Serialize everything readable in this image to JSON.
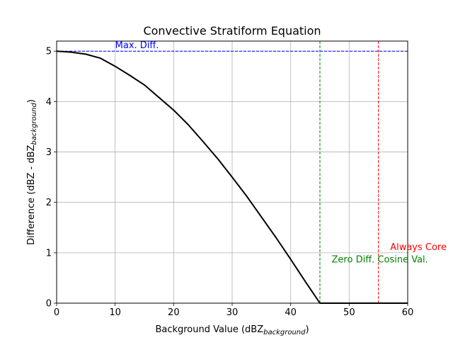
{
  "chart_data": {
    "type": "line",
    "title": "Convective Stratiform Equation",
    "xlabel": {
      "main": "Background Value (dBZ",
      "sub": "background",
      "close": ")"
    },
    "ylabel": {
      "main": "Difference (dBZ - dBZ",
      "sub": "background",
      "close": ")"
    },
    "xlim": [
      0,
      60
    ],
    "ylim": [
      0,
      5.2
    ],
    "grid": true,
    "xticks": [
      0,
      10,
      20,
      30,
      40,
      50,
      60
    ],
    "yticks": [
      0,
      1,
      2,
      3,
      4,
      5
    ],
    "series": [
      {
        "color": "#000000",
        "x": [
          0,
          2.5,
          5,
          7.5,
          10,
          12.5,
          15,
          17.5,
          20,
          22.5,
          25,
          27.5,
          30,
          32.5,
          35,
          37.5,
          40,
          42.5,
          45,
          47.5,
          50,
          52.5,
          55,
          57.5,
          60
        ],
        "y": [
          5.0,
          4.98,
          4.94,
          4.86,
          4.7,
          4.52,
          4.33,
          4.08,
          3.83,
          3.54,
          3.21,
          2.87,
          2.5,
          2.12,
          1.71,
          1.3,
          0.87,
          0.43,
          0.0,
          0.0,
          0.0,
          0.0,
          0.0,
          0.0,
          0.0
        ]
      }
    ],
    "reference_lines": [
      {
        "orientation": "horizontal",
        "value": 5.0,
        "color": "#0000ff",
        "label": "Max. Diff.",
        "label_x": 10,
        "label_y": 5.0
      },
      {
        "orientation": "vertical",
        "value": 45,
        "color": "#008000",
        "label": "Zero Diff. Cosine Val.",
        "label_x": 47,
        "label_y": 0.75
      },
      {
        "orientation": "vertical",
        "value": 55,
        "color": "#ff0000",
        "label": "Always Core",
        "label_x": 57,
        "label_y": 1.0
      }
    ]
  }
}
